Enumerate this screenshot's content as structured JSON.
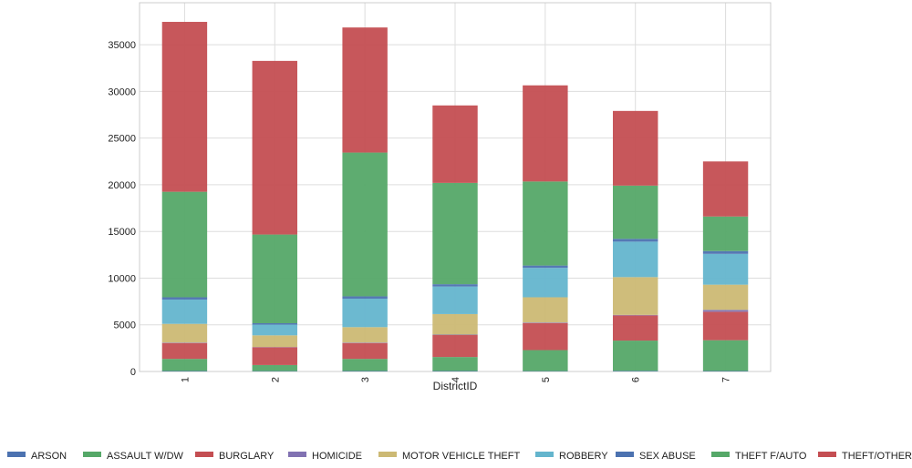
{
  "chart_data": {
    "type": "bar",
    "stacked": true,
    "title": "",
    "xlabel": "DistrictID",
    "ylabel": "",
    "categories": [
      "1",
      "2",
      "3",
      "4",
      "5",
      "6",
      "7"
    ],
    "y_ticks": [
      0,
      5000,
      10000,
      15000,
      20000,
      25000,
      30000,
      35000
    ],
    "ylim": [
      0,
      39500
    ],
    "grid": true,
    "legend_position": "bottom",
    "series": [
      {
        "name": "ARSON",
        "color": "#4c72b0",
        "values": [
          50,
          40,
          50,
          50,
          40,
          60,
          50
        ]
      },
      {
        "name": "ASSAULT W/DW",
        "color": "#55a868",
        "values": [
          1300,
          650,
          1300,
          1500,
          2250,
          3250,
          3300
        ]
      },
      {
        "name": "BURGLARY",
        "color": "#c44e52",
        "values": [
          1700,
          1900,
          1700,
          2350,
          2900,
          2700,
          3050
        ]
      },
      {
        "name": "HOMICIDE",
        "color": "#8172b2",
        "values": [
          50,
          30,
          50,
          50,
          60,
          50,
          200
        ]
      },
      {
        "name": "MOTOR VEHICLE THEFT",
        "color": "#ccb974",
        "values": [
          2000,
          1250,
          1650,
          2200,
          2700,
          4050,
          2700
        ]
      },
      {
        "name": "ROBBERY",
        "color": "#64b5cd",
        "values": [
          2600,
          1150,
          3050,
          2950,
          3150,
          3800,
          3300
        ]
      },
      {
        "name": "SEX ABUSE",
        "color": "#4c72b0",
        "values": [
          250,
          150,
          250,
          250,
          250,
          300,
          300
        ]
      },
      {
        "name": "THEFT F/AUTO",
        "color": "#55a868",
        "values": [
          11300,
          9500,
          15400,
          10850,
          9000,
          5700,
          3700
        ]
      },
      {
        "name": "THEFT/OTHER",
        "color": "#c44e52",
        "values": [
          18200,
          18600,
          13400,
          8300,
          10300,
          8000,
          5900
        ]
      }
    ]
  }
}
